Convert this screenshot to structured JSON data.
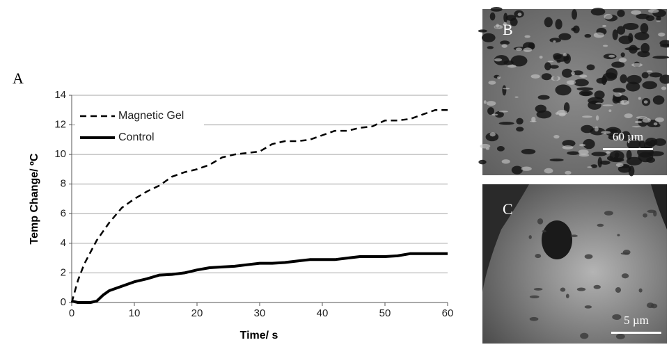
{
  "chart_data": {
    "type": "line",
    "xlabel": "Time/ s",
    "ylabel": "Temp Change/ ºC",
    "x": [
      0,
      1,
      2,
      3,
      4,
      5,
      6,
      8,
      10,
      12,
      14,
      16,
      18,
      20,
      22,
      24,
      26,
      28,
      30,
      32,
      34,
      36,
      38,
      40,
      42,
      44,
      46,
      48,
      50,
      52,
      54,
      56,
      58,
      60
    ],
    "series": [
      {
        "name": "Magnetic Gel",
        "color": "#000000",
        "style": "dashed",
        "values": [
          0,
          1.5,
          2.6,
          3.4,
          4.2,
          4.8,
          5.4,
          6.4,
          7.0,
          7.5,
          7.9,
          8.5,
          8.8,
          9.0,
          9.3,
          9.8,
          10.0,
          10.1,
          10.2,
          10.7,
          10.9,
          10.9,
          11.0,
          11.3,
          11.6,
          11.6,
          11.8,
          11.9,
          12.3,
          12.3,
          12.4,
          12.7,
          13.0,
          13.0
        ]
      },
      {
        "name": "Control",
        "color": "#000000",
        "style": "solid",
        "values": [
          0.1,
          0,
          0,
          0,
          0.1,
          0.5,
          0.8,
          1.1,
          1.4,
          1.6,
          1.85,
          1.9,
          2.0,
          2.2,
          2.35,
          2.4,
          2.45,
          2.55,
          2.65,
          2.65,
          2.7,
          2.8,
          2.9,
          2.9,
          2.9,
          3.0,
          3.1,
          3.1,
          3.1,
          3.15,
          3.3,
          3.3,
          3.3,
          3.3
        ]
      }
    ],
    "xlim": [
      0,
      60
    ],
    "xticks": [
      0,
      10,
      20,
      30,
      40,
      50,
      60
    ],
    "ylim": [
      0,
      14
    ],
    "yticks": [
      0,
      2,
      4,
      6,
      8,
      10,
      12,
      14
    ],
    "grid": true,
    "legend": "upper left"
  },
  "panels": {
    "a_label": "A",
    "b_label": "B",
    "b_scale": "60 µm",
    "c_label": "C",
    "c_scale": "5 µm"
  }
}
